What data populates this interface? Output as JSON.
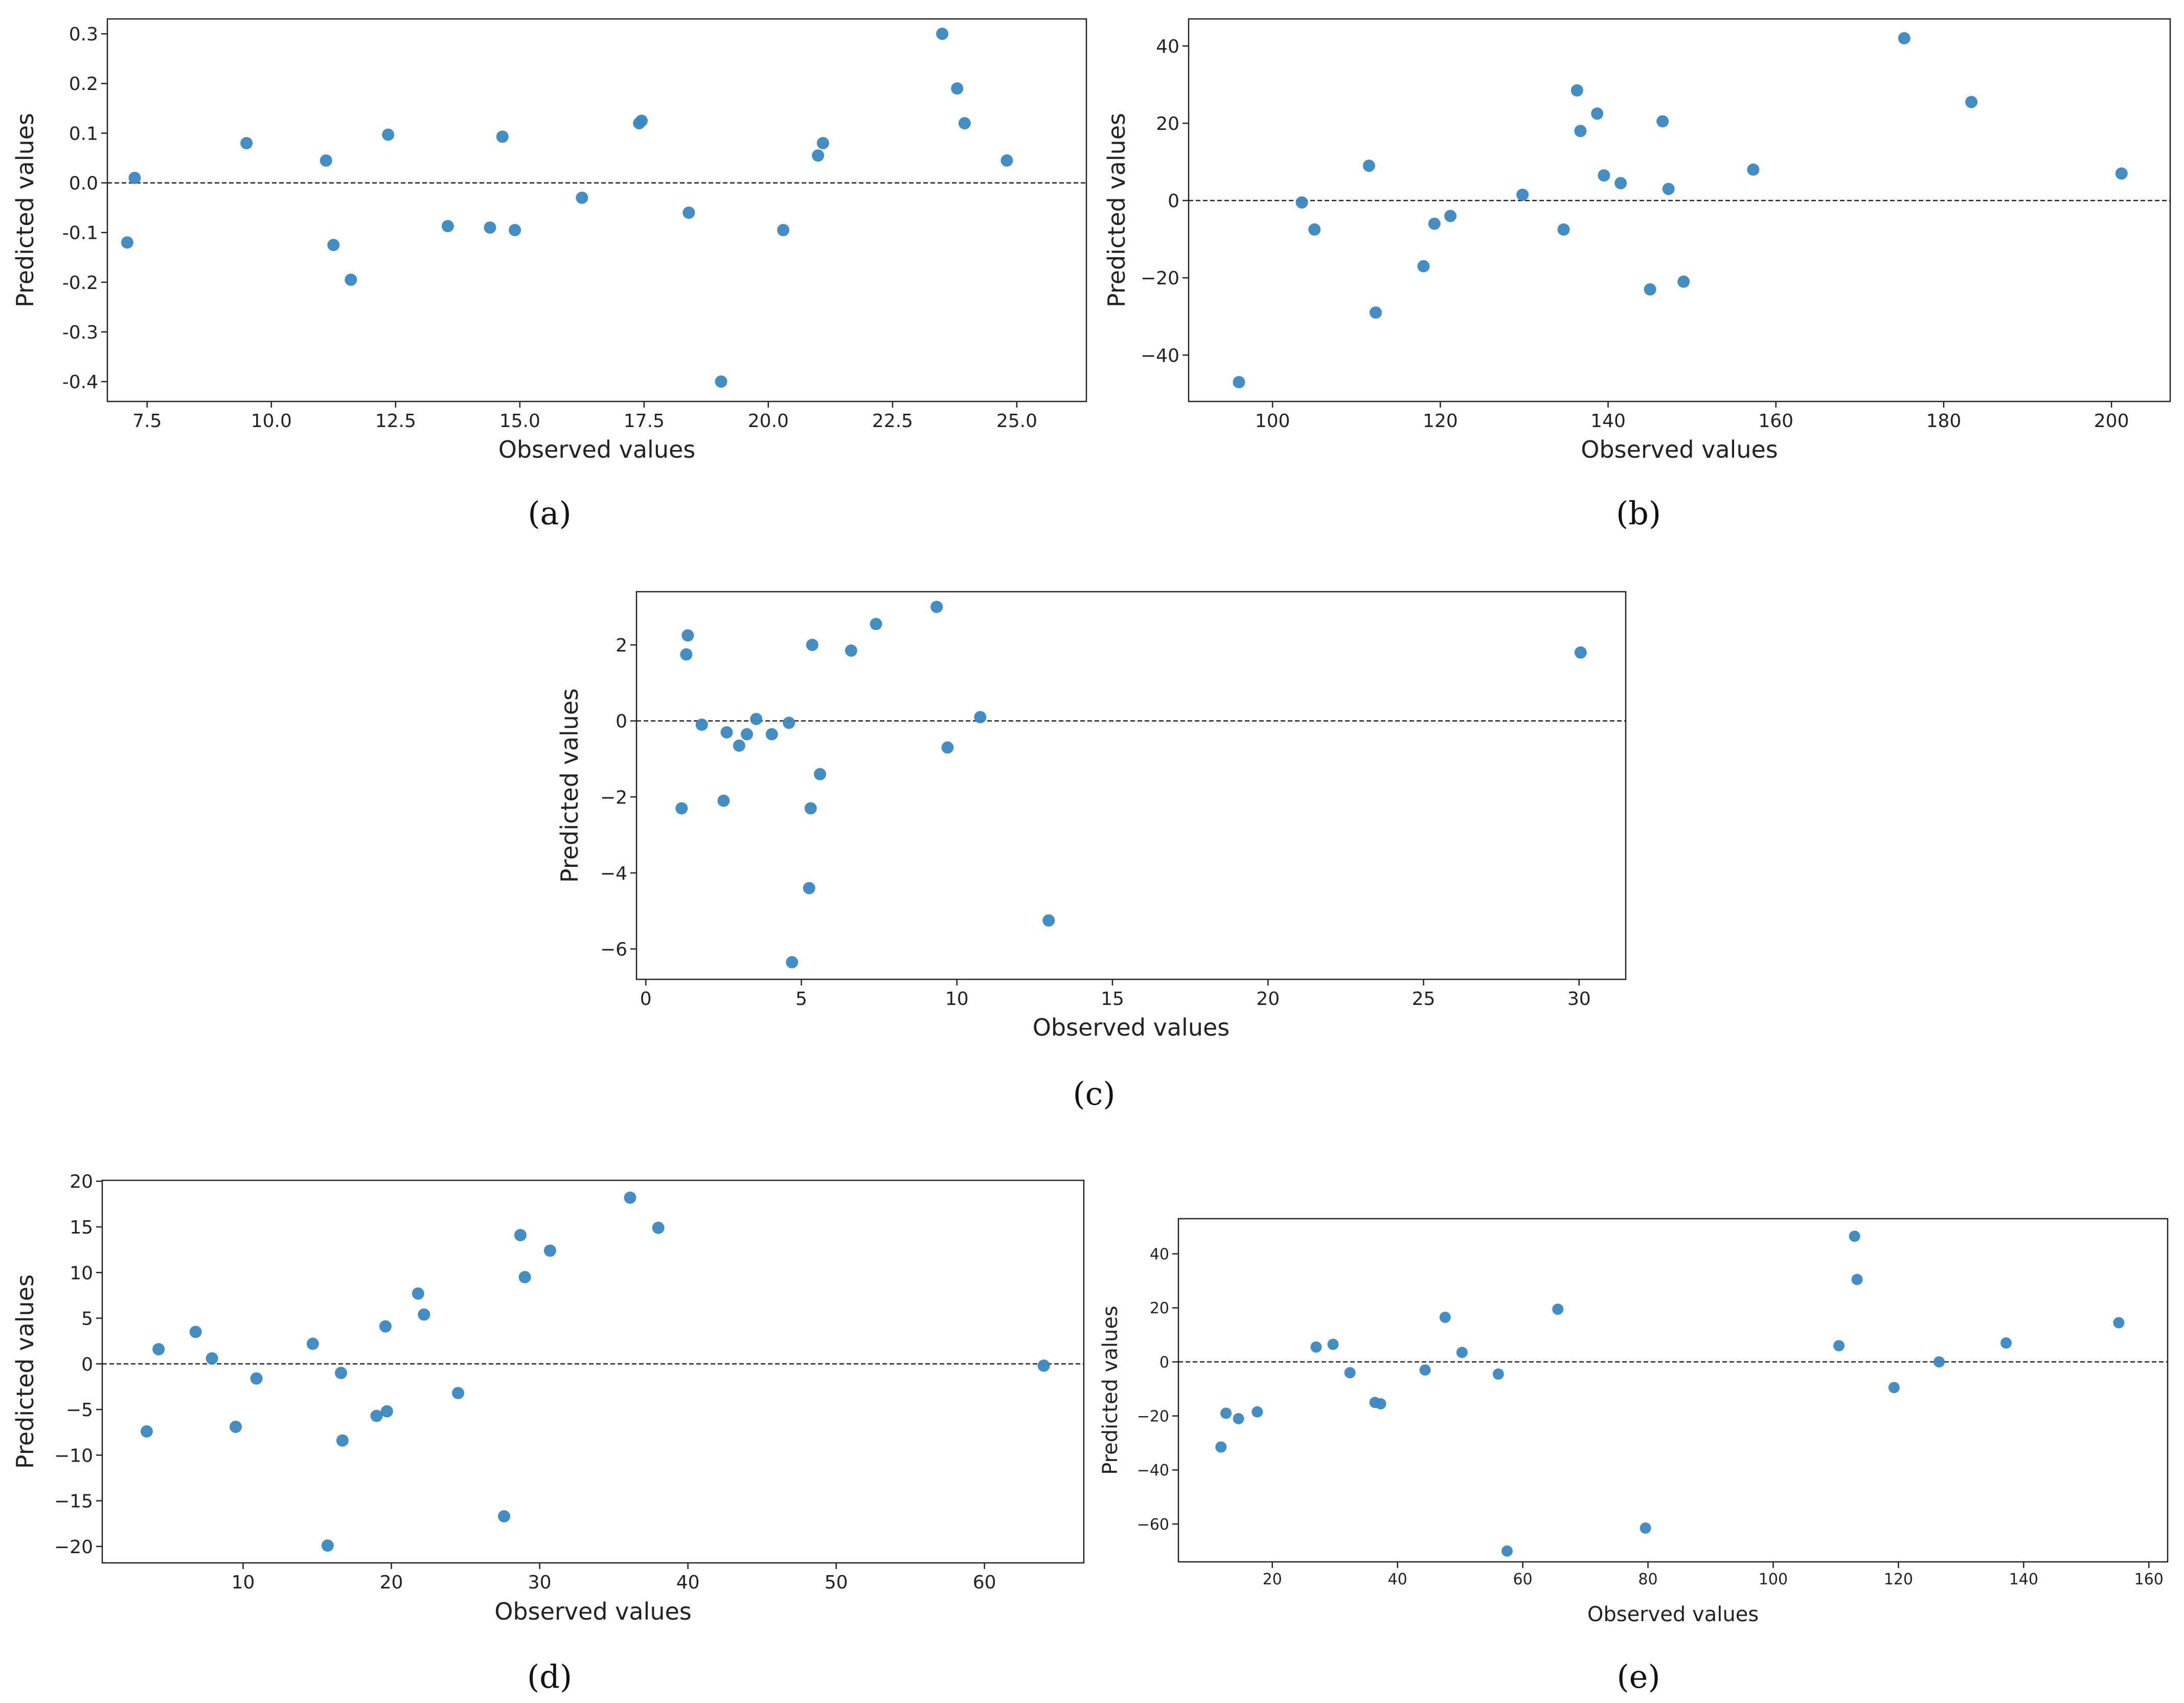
{
  "style": {
    "point_color": "#3a87c0",
    "axis_color": "#222222",
    "zero_line_color": "#222222"
  },
  "chart_data": [
    {
      "type": "scatter",
      "caption": "(a)",
      "xlabel": "Observed values",
      "ylabel": "Predicted values",
      "xlim": [
        6.7,
        26.4
      ],
      "ylim": [
        -0.44,
        0.33
      ],
      "xticks": [
        7.5,
        10.0,
        12.5,
        15.0,
        17.5,
        20.0,
        22.5,
        25.0
      ],
      "xtick_labels": [
        "7.5",
        "10.0",
        "12.5",
        "15.0",
        "17.5",
        "20.0",
        "22.5",
        "25.0"
      ],
      "yticks": [
        -0.4,
        -0.3,
        -0.2,
        -0.1,
        0.0,
        0.1,
        0.2,
        0.3
      ],
      "ytick_labels": [
        "-0.4",
        "-0.3",
        "-0.2",
        "-0.1",
        "0.0",
        "0.1",
        "0.2",
        "0.3"
      ],
      "zero_line": 0,
      "points": [
        [
          7.1,
          -0.12
        ],
        [
          7.25,
          0.01
        ],
        [
          9.5,
          0.08
        ],
        [
          11.1,
          0.045
        ],
        [
          11.25,
          -0.125
        ],
        [
          11.6,
          -0.195
        ],
        [
          12.35,
          0.097
        ],
        [
          13.55,
          -0.087
        ],
        [
          14.4,
          -0.09
        ],
        [
          14.65,
          0.093
        ],
        [
          14.9,
          -0.095
        ],
        [
          16.25,
          -0.03
        ],
        [
          17.4,
          0.12
        ],
        [
          17.45,
          0.125
        ],
        [
          18.4,
          -0.06
        ],
        [
          19.05,
          -0.4
        ],
        [
          20.3,
          -0.095
        ],
        [
          21.0,
          0.055
        ],
        [
          21.1,
          0.08
        ],
        [
          23.5,
          0.3
        ],
        [
          23.8,
          0.19
        ],
        [
          23.95,
          0.12
        ],
        [
          24.8,
          0.045
        ]
      ]
    },
    {
      "type": "scatter",
      "caption": "(b)",
      "xlabel": "Observed values",
      "ylabel": "Predicted values",
      "xlim": [
        90,
        207
      ],
      "ylim": [
        -52,
        47
      ],
      "xticks": [
        100,
        120,
        140,
        160,
        180,
        200
      ],
      "xtick_labels": [
        "100",
        "120",
        "140",
        "160",
        "180",
        "200"
      ],
      "yticks": [
        -40,
        -20,
        0,
        20,
        40
      ],
      "ytick_labels": [
        "−40",
        "−20",
        "0",
        "20",
        "40"
      ],
      "zero_line": 0,
      "points": [
        [
          96,
          -47
        ],
        [
          103.5,
          -0.5
        ],
        [
          105,
          -7.5
        ],
        [
          111.5,
          9
        ],
        [
          112.3,
          -29
        ],
        [
          118,
          -17
        ],
        [
          119.3,
          -6
        ],
        [
          121.2,
          -4
        ],
        [
          129.8,
          1.5
        ],
        [
          134.7,
          -7.5
        ],
        [
          136.3,
          28.5
        ],
        [
          136.7,
          18
        ],
        [
          138.7,
          22.5
        ],
        [
          139.5,
          6.5
        ],
        [
          141.5,
          4.5
        ],
        [
          145,
          -23
        ],
        [
          146.5,
          20.5
        ],
        [
          147.2,
          3
        ],
        [
          149,
          -21
        ],
        [
          157.3,
          8
        ],
        [
          175.3,
          42
        ],
        [
          183.3,
          25.5
        ],
        [
          201.2,
          7
        ]
      ]
    },
    {
      "type": "scatter",
      "caption": "(c)",
      "xlabel": "Observed values",
      "ylabel": "Predicted values",
      "xlim": [
        -0.3,
        31.5
      ],
      "ylim": [
        -6.8,
        3.4
      ],
      "xticks": [
        0,
        5,
        10,
        15,
        20,
        25,
        30
      ],
      "xtick_labels": [
        "0",
        "5",
        "10",
        "15",
        "20",
        "25",
        "30"
      ],
      "yticks": [
        -6,
        -4,
        -2,
        0,
        2
      ],
      "ytick_labels": [
        "−6",
        "−4",
        "−2",
        "0",
        "2"
      ],
      "zero_line": 0,
      "points": [
        [
          1.15,
          -2.3
        ],
        [
          1.3,
          1.75
        ],
        [
          1.35,
          2.25
        ],
        [
          1.8,
          -0.1
        ],
        [
          2.5,
          -2.1
        ],
        [
          2.6,
          -0.3
        ],
        [
          3.0,
          -0.65
        ],
        [
          3.25,
          -0.35
        ],
        [
          3.55,
          0.05
        ],
        [
          4.05,
          -0.35
        ],
        [
          4.6,
          -0.05
        ],
        [
          4.7,
          -6.35
        ],
        [
          5.25,
          -4.4
        ],
        [
          5.3,
          -2.3
        ],
        [
          5.35,
          2.0
        ],
        [
          5.6,
          -1.4
        ],
        [
          6.6,
          1.85
        ],
        [
          7.4,
          2.55
        ],
        [
          9.35,
          3.0
        ],
        [
          9.7,
          -0.7
        ],
        [
          10.75,
          0.1
        ],
        [
          12.95,
          -5.25
        ],
        [
          30.05,
          1.8
        ]
      ]
    },
    {
      "type": "scatter",
      "caption": "(d)",
      "xlabel": "Observed values",
      "ylabel": "Predicted values",
      "xlim": [
        0.5,
        66.7
      ],
      "ylim": [
        -21.8,
        20.1
      ],
      "xticks": [
        10,
        20,
        30,
        40,
        50,
        60
      ],
      "xtick_labels": [
        "10",
        "20",
        "30",
        "40",
        "50",
        "60"
      ],
      "yticks": [
        -20,
        -15,
        -10,
        -5,
        0,
        5,
        10,
        15,
        20
      ],
      "ytick_labels": [
        "−20",
        "−15",
        "−10",
        "−5",
        "0",
        "5",
        "10",
        "15",
        "20"
      ],
      "zero_line": 0,
      "points": [
        [
          3.5,
          -7.4
        ],
        [
          4.3,
          1.6
        ],
        [
          6.8,
          3.5
        ],
        [
          7.9,
          0.6
        ],
        [
          9.5,
          -6.9
        ],
        [
          10.9,
          -1.6
        ],
        [
          14.7,
          2.2
        ],
        [
          15.7,
          -19.9
        ],
        [
          16.6,
          -1.0
        ],
        [
          16.7,
          -8.4
        ],
        [
          19.0,
          -5.7
        ],
        [
          19.6,
          4.1
        ],
        [
          19.7,
          -5.2
        ],
        [
          21.8,
          7.7
        ],
        [
          22.2,
          5.4
        ],
        [
          24.5,
          -3.2
        ],
        [
          27.6,
          -16.7
        ],
        [
          28.7,
          14.1
        ],
        [
          29.0,
          9.5
        ],
        [
          30.7,
          12.4
        ],
        [
          36.1,
          18.2
        ],
        [
          38.0,
          14.9
        ],
        [
          64.0,
          -0.2
        ]
      ]
    },
    {
      "type": "scatter",
      "caption": "(e)",
      "xlabel": "Observed values",
      "ylabel": "Predicted values",
      "xlim": [
        5,
        163
      ],
      "ylim": [
        -74,
        53
      ],
      "xticks": [
        20,
        40,
        60,
        80,
        100,
        120,
        140,
        160
      ],
      "xtick_labels": [
        "20",
        "40",
        "60",
        "80",
        "100",
        "120",
        "140",
        "160"
      ],
      "yticks": [
        -60,
        -40,
        -20,
        0,
        20,
        40
      ],
      "ytick_labels": [
        "−60",
        "−40",
        "−20",
        "0",
        "20",
        "40"
      ],
      "zero_line": 0,
      "points": [
        [
          11.8,
          -31.5
        ],
        [
          12.6,
          -19
        ],
        [
          14.6,
          -21
        ],
        [
          17.6,
          -18.5
        ],
        [
          27,
          5.5
        ],
        [
          29.7,
          6.5
        ],
        [
          32.4,
          -4
        ],
        [
          36.4,
          -15
        ],
        [
          37.3,
          -15.5
        ],
        [
          44.4,
          -3
        ],
        [
          47.6,
          16.5
        ],
        [
          50.3,
          3.5
        ],
        [
          56.1,
          -4.5
        ],
        [
          57.5,
          -70
        ],
        [
          65.6,
          19.5
        ],
        [
          79.6,
          -61.5
        ],
        [
          110.5,
          6
        ],
        [
          113,
          46.5
        ],
        [
          113.4,
          30.5
        ],
        [
          119.3,
          -9.5
        ],
        [
          126.5,
          0
        ],
        [
          137.2,
          7
        ],
        [
          155.2,
          14.5
        ]
      ]
    }
  ]
}
